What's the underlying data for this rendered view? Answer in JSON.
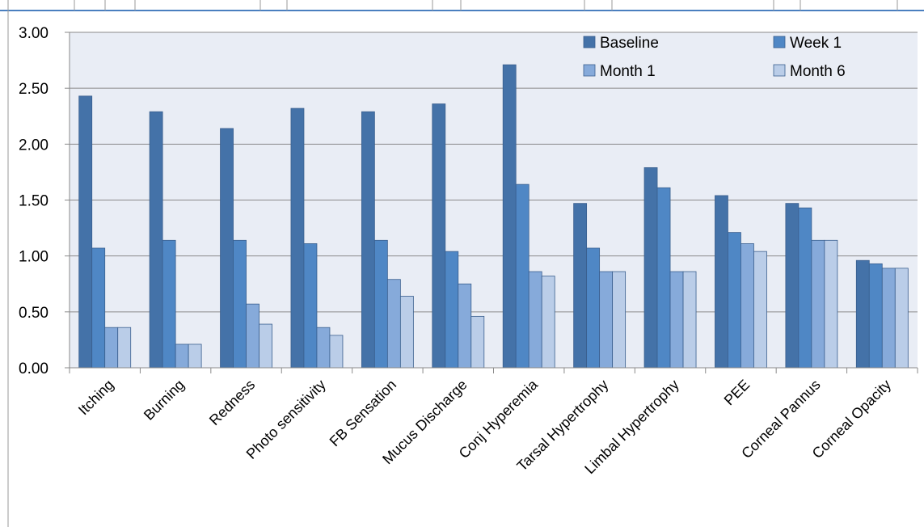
{
  "chart_data": {
    "type": "bar",
    "categories": [
      "Itching",
      "Burning",
      "Redness",
      "Photo sensitivity",
      "FB Sensation",
      "Mucus Discharge",
      "Conj Hyperemia",
      "Tarsal Hypertrophy",
      "Limbal Hypertrophy",
      "PEE",
      "Corneal Pannus",
      "Corneal Opacity"
    ],
    "series": [
      {
        "name": "Baseline",
        "color": "#4472A8",
        "values": [
          2.43,
          2.29,
          2.14,
          2.32,
          2.29,
          2.36,
          2.71,
          1.47,
          1.79,
          1.54,
          1.47,
          0.96
        ]
      },
      {
        "name": "Week 1",
        "color": "#4F87C5",
        "values": [
          1.07,
          1.14,
          1.14,
          1.11,
          1.14,
          1.04,
          1.64,
          1.07,
          1.61,
          1.21,
          1.43,
          0.93
        ]
      },
      {
        "name": "Month 1",
        "color": "#86AADA",
        "values": [
          0.36,
          0.21,
          0.57,
          0.36,
          0.79,
          0.75,
          0.86,
          0.86,
          0.86,
          1.11,
          1.14,
          0.89
        ]
      },
      {
        "name": "Month 6",
        "color": "#BACDE8",
        "values": [
          0.36,
          0.21,
          0.39,
          0.29,
          0.64,
          0.46,
          0.82,
          0.86,
          0.86,
          1.04,
          1.14,
          0.89
        ]
      }
    ],
    "ylim": [
      0,
      3.0
    ],
    "yticks": [
      "0.00",
      "0.50",
      "1.00",
      "1.50",
      "2.00",
      "2.50",
      "3.00"
    ],
    "title": "",
    "xlabel": "",
    "ylabel": "",
    "grid": true,
    "legend_position": "top-right",
    "plot_background": "#E9EDF5",
    "gridline_color": "#8A8A8A",
    "frame_color": "#4A7FBF"
  }
}
